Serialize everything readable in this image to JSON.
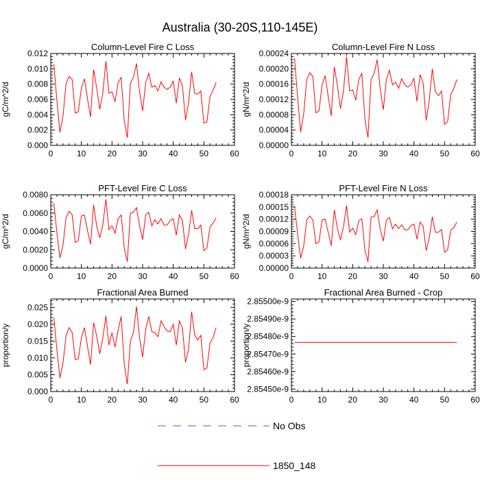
{
  "title": "Australia (30-20S,110-145E)",
  "colors": {
    "model": "#ff0000",
    "obs": "#5050ff",
    "axes": "#000000"
  },
  "legend": [
    {
      "label": "No Obs",
      "style": "dashed",
      "color": "#5050ff"
    },
    {
      "label": "1850_148",
      "style": "solid",
      "color": "#ff0000"
    }
  ],
  "chart_data": [
    {
      "type": "line",
      "title": "Column-Level Fire C Loss",
      "ylabel": "gC/m^2/d",
      "xlim": [
        0,
        60
      ],
      "xticks": [
        "0",
        "10",
        "20",
        "30",
        "40",
        "50",
        "60"
      ],
      "ylim": [
        0,
        0.012
      ],
      "yticks": [
        "0.000",
        "0.002",
        "0.004",
        "0.006",
        "0.008",
        "0.010",
        "0.012"
      ],
      "series": [
        {
          "x": [
            1,
            2,
            3,
            4,
            5,
            6,
            7,
            8,
            9,
            10,
            11,
            12,
            13,
            14,
            15,
            16,
            17,
            18,
            19,
            20,
            21,
            22,
            23,
            24,
            25,
            26,
            27,
            28,
            29,
            30,
            31,
            32,
            33,
            34,
            35,
            36,
            37,
            38,
            39,
            40,
            41,
            42,
            43,
            44,
            45,
            46,
            47,
            48,
            49,
            50,
            51,
            52,
            53,
            54
          ],
          "values": [
            0.0106,
            0.0059,
            0.0017,
            0.0038,
            0.0081,
            0.009,
            0.0086,
            0.0042,
            0.0044,
            0.0075,
            0.0087,
            0.0061,
            0.0037,
            0.0099,
            0.0075,
            0.0047,
            0.0068,
            0.011,
            0.0068,
            0.007,
            0.0057,
            0.0082,
            0.0089,
            0.0032,
            0.001,
            0.0081,
            0.0089,
            0.0107,
            0.007,
            0.0045,
            0.0082,
            0.0094,
            0.0076,
            0.0078,
            0.0071,
            0.0083,
            0.0076,
            0.0073,
            0.0076,
            0.0084,
            0.0055,
            0.0088,
            0.0078,
            0.0033,
            0.0056,
            0.0096,
            0.0068,
            0.0067,
            0.0071,
            0.0029,
            0.0031,
            0.0064,
            0.0072,
            0.0082
          ]
        }
      ]
    },
    {
      "type": "line",
      "title": "Column-Level Fire N Loss",
      "ylabel": "gN/m^2/d",
      "xlim": [
        0,
        60
      ],
      "xticks": [
        "0",
        "10",
        "20",
        "30",
        "40",
        "50",
        "60"
      ],
      "ylim": [
        0,
        0.00024
      ],
      "yticks": [
        "0.00000",
        "0.00004",
        "0.00008",
        "0.00012",
        "0.00016",
        "0.00020",
        "0.00024"
      ],
      "series": [
        {
          "x": [
            1,
            2,
            3,
            4,
            5,
            6,
            7,
            8,
            9,
            10,
            11,
            12,
            13,
            14,
            15,
            16,
            17,
            18,
            19,
            20,
            21,
            22,
            23,
            24,
            25,
            26,
            27,
            28,
            29,
            30,
            31,
            32,
            33,
            34,
            35,
            36,
            37,
            38,
            39,
            40,
            41,
            42,
            43,
            44,
            45,
            46,
            47,
            48,
            49,
            50,
            51,
            52,
            53,
            54
          ],
          "values": [
            0.000228,
            0.000128,
            3.5e-05,
            8.2e-05,
            0.000172,
            0.00019,
            0.00018,
            8.5e-05,
            9e-05,
            0.000158,
            0.000182,
            0.000128,
            7.7e-05,
            0.000205,
            0.000157,
            9.6e-05,
            0.000142,
            0.000232,
            0.000142,
            0.000145,
            0.000118,
            0.000172,
            0.000188,
            6.8e-05,
            2e-05,
            0.000172,
            0.000188,
            0.000224,
            0.000147,
            9.3e-05,
            0.000172,
            0.000196,
            0.000158,
            0.000165,
            0.000149,
            0.000174,
            0.000158,
            0.000152,
            0.000158,
            0.000175,
            0.000115,
            0.000185,
            0.000163,
            6.5e-05,
            0.000117,
            0.0002,
            0.00014,
            0.00013,
            0.000142,
            5.5e-05,
            6.2e-05,
            0.000132,
            0.000148,
            0.000172
          ]
        }
      ]
    },
    {
      "type": "line",
      "title": "PFT-Level Fire C Loss",
      "ylabel": "gC/m^2/d",
      "xlim": [
        0,
        60
      ],
      "xticks": [
        "0",
        "10",
        "20",
        "30",
        "40",
        "50",
        "60"
      ],
      "ylim": [
        0,
        0.008
      ],
      "yticks": [
        "0.0000",
        "0.0020",
        "0.0040",
        "0.0060",
        "0.0080"
      ],
      "series": [
        {
          "x": [
            1,
            2,
            3,
            4,
            5,
            6,
            7,
            8,
            9,
            10,
            11,
            12,
            13,
            14,
            15,
            16,
            17,
            18,
            19,
            20,
            21,
            22,
            23,
            24,
            25,
            26,
            27,
            28,
            29,
            30,
            31,
            32,
            33,
            34,
            35,
            36,
            37,
            38,
            39,
            40,
            41,
            42,
            43,
            44,
            45,
            46,
            47,
            48,
            49,
            50,
            51,
            52,
            53,
            54
          ],
          "values": [
            0.0071,
            0.0039,
            0.0011,
            0.0025,
            0.0055,
            0.0062,
            0.0058,
            0.0028,
            0.003,
            0.0057,
            0.0058,
            0.0041,
            0.0026,
            0.0069,
            0.0046,
            0.0033,
            0.0047,
            0.0075,
            0.0042,
            0.0046,
            0.0038,
            0.0054,
            0.0058,
            0.0022,
            0.0007,
            0.006,
            0.0061,
            0.0066,
            0.0046,
            0.0031,
            0.0058,
            0.0061,
            0.0046,
            0.0053,
            0.0048,
            0.0054,
            0.0047,
            0.0047,
            0.0052,
            0.0054,
            0.0036,
            0.0058,
            0.0052,
            0.0021,
            0.0037,
            0.0063,
            0.0043,
            0.0043,
            0.0047,
            0.0019,
            0.0022,
            0.0045,
            0.0049,
            0.0055
          ]
        }
      ]
    },
    {
      "type": "line",
      "title": "PFT-Level Fire N Loss",
      "ylabel": "gN/m^2/d",
      "xlim": [
        0,
        60
      ],
      "xticks": [
        "0",
        "10",
        "20",
        "30",
        "40",
        "50",
        "60"
      ],
      "ylim": [
        0,
        0.00018
      ],
      "yticks": [
        "0.00000",
        "0.00003",
        "0.00006",
        "0.00009",
        "0.00012",
        "0.00015",
        "0.00018"
      ],
      "series": [
        {
          "x": [
            1,
            2,
            3,
            4,
            5,
            6,
            7,
            8,
            9,
            10,
            11,
            12,
            13,
            14,
            15,
            16,
            17,
            18,
            19,
            20,
            21,
            22,
            23,
            24,
            25,
            26,
            27,
            28,
            29,
            30,
            31,
            32,
            33,
            34,
            35,
            36,
            37,
            38,
            39,
            40,
            41,
            42,
            43,
            44,
            45,
            46,
            47,
            48,
            49,
            50,
            51,
            52,
            53,
            54
          ],
          "values": [
            0.000152,
            8.5e-05,
            2.4e-05,
            5.4e-05,
            0.000118,
            0.000128,
            0.000118,
            6e-05,
            6.4e-05,
            0.000118,
            0.00012,
            8.8e-05,
            5.5e-05,
            0.000143,
            9.7e-05,
            7e-05,
            0.000101,
            0.000154,
            8.8e-05,
            9.8e-05,
            8.2e-05,
            0.000116,
            0.000121,
            4.4e-05,
            1.5e-05,
            0.000126,
            0.000126,
            0.000143,
            9.5e-05,
            6.6e-05,
            0.000118,
            0.000124,
            9.6e-05,
            0.000108,
            9.7e-05,
            0.000106,
            9.4e-05,
            9.4e-05,
            0.000104,
            0.000108,
            7.1e-05,
            0.000113,
            0.000103,
            4.3e-05,
            7.4e-05,
            0.000126,
            8.8e-05,
            8.8e-05,
            9.5e-05,
            3.9e-05,
            4.5e-05,
            9.3e-05,
            9.9e-05,
            0.000113
          ]
        }
      ]
    },
    {
      "type": "line",
      "title": "Fractional Area Burned",
      "ylabel": "proportion/y",
      "xlim": [
        0,
        60
      ],
      "xticks": [
        "0",
        "10",
        "20",
        "30",
        "40",
        "50",
        "60"
      ],
      "ylim": [
        0,
        0.0275
      ],
      "yticks": [
        "0.000",
        "0.005",
        "0.010",
        "0.015",
        "0.020",
        "0.025"
      ],
      "series": [
        {
          "x": [
            1,
            2,
            3,
            4,
            5,
            6,
            7,
            8,
            9,
            10,
            11,
            12,
            13,
            14,
            15,
            16,
            17,
            18,
            19,
            20,
            21,
            22,
            23,
            24,
            25,
            26,
            27,
            28,
            29,
            30,
            31,
            32,
            33,
            34,
            35,
            36,
            37,
            38,
            39,
            40,
            41,
            42,
            43,
            44,
            45,
            46,
            47,
            48,
            49,
            50,
            51,
            52,
            53,
            54
          ],
          "values": [
            0.022,
            0.0125,
            0.004,
            0.0085,
            0.0165,
            0.019,
            0.0175,
            0.0095,
            0.0097,
            0.016,
            0.019,
            0.0135,
            0.008,
            0.0205,
            0.0165,
            0.0112,
            0.0158,
            0.0225,
            0.0138,
            0.0175,
            0.0132,
            0.0183,
            0.0223,
            0.0082,
            0.0022,
            0.015,
            0.0175,
            0.0253,
            0.0158,
            0.0102,
            0.0185,
            0.0223,
            0.0178,
            0.0175,
            0.0163,
            0.021,
            0.0193,
            0.018,
            0.0178,
            0.02,
            0.0138,
            0.021,
            0.0188,
            0.0087,
            0.0125,
            0.0237,
            0.0168,
            0.0153,
            0.0167,
            0.0065,
            0.007,
            0.0145,
            0.016,
            0.019
          ]
        }
      ]
    },
    {
      "type": "line",
      "title": "Fractional Area Burned - Crop",
      "ylabel": "proportion/y",
      "xlim": [
        0,
        60
      ],
      "xticks": [
        "0",
        "10",
        "20",
        "30",
        "40",
        "50",
        "60"
      ],
      "ylim": [
        2.854486e-09,
        2.855014e-09
      ],
      "yticks": [
        "2.85450e-9",
        "2.85460e-9",
        "2.85470e-9",
        "2.85480e-9",
        "2.85490e-9",
        "2.85500e-9"
      ],
      "series": [
        {
          "x": [
            1,
            54
          ],
          "values": [
            2.854766e-09,
            2.854766e-09
          ]
        }
      ]
    }
  ]
}
